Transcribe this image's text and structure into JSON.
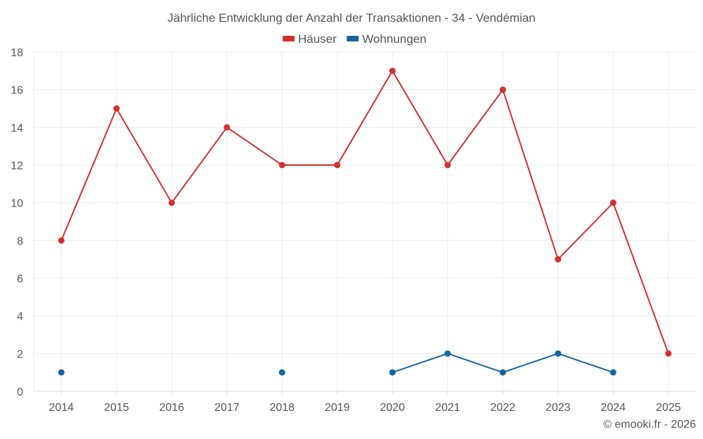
{
  "chart_data": {
    "type": "line",
    "title": "Jährliche Entwicklung der Anzahl der Transaktionen - 34 - Vendémian",
    "categories": [
      "2014",
      "2015",
      "2016",
      "2017",
      "2018",
      "2019",
      "2020",
      "2021",
      "2022",
      "2023",
      "2024",
      "2025"
    ],
    "ylim": [
      0,
      18
    ],
    "yticks": [
      0,
      2,
      4,
      6,
      8,
      10,
      12,
      14,
      16,
      18
    ],
    "grid": true,
    "legend_position": "top-center",
    "series": [
      {
        "name": "Häuser",
        "color": "#d32f2f",
        "values": [
          8,
          15,
          10,
          14,
          12,
          12,
          17,
          12,
          16,
          7,
          10,
          2
        ]
      },
      {
        "name": "Wohnungen",
        "color": "#1565a0",
        "values": [
          1,
          null,
          null,
          null,
          1,
          null,
          1,
          2,
          1,
          2,
          1,
          null
        ]
      }
    ]
  },
  "credit": "© emooki.fr - 2026"
}
